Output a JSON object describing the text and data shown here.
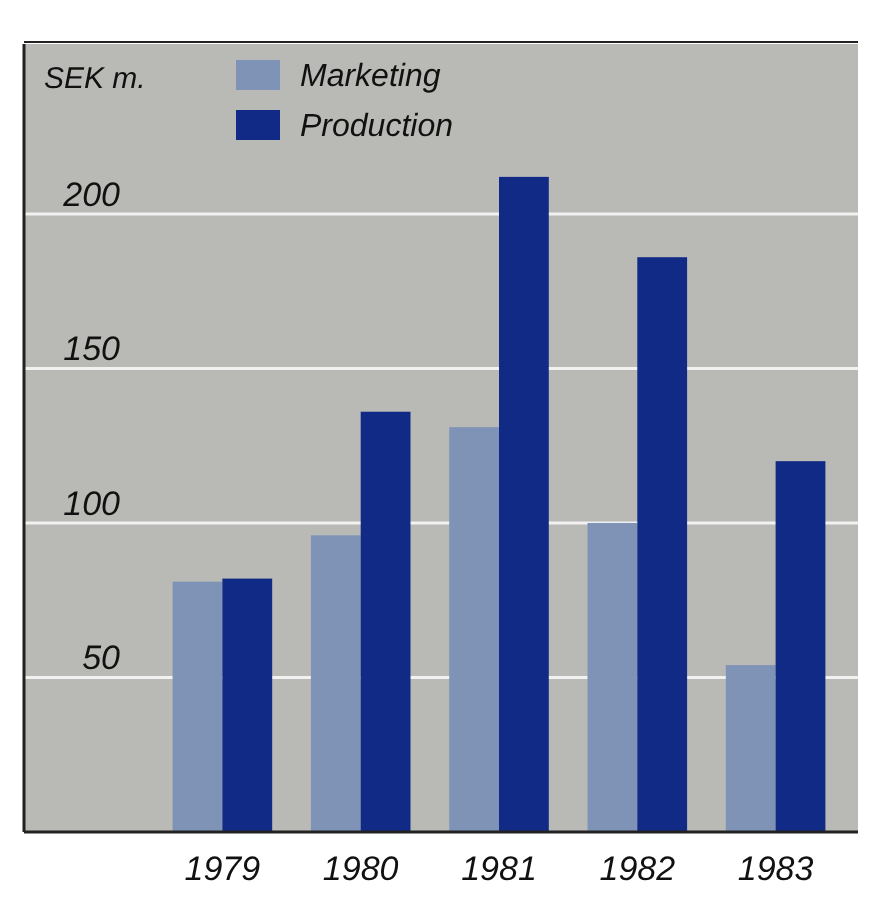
{
  "chart_data": {
    "type": "bar",
    "ylabel": "SEK m.",
    "categories": [
      "1979",
      "1980",
      "1981",
      "1982",
      "1983"
    ],
    "series": [
      {
        "name": "Marketing",
        "color": "#7e93b5",
        "values": [
          81,
          96,
          131,
          100,
          54
        ]
      },
      {
        "name": "Production",
        "color": "#102a86",
        "values": [
          82,
          136,
          212,
          186,
          120
        ]
      }
    ],
    "ylim": [
      0,
      255
    ],
    "yticks": [
      50,
      100,
      150,
      200
    ],
    "grid": "y",
    "legend": "top left"
  }
}
